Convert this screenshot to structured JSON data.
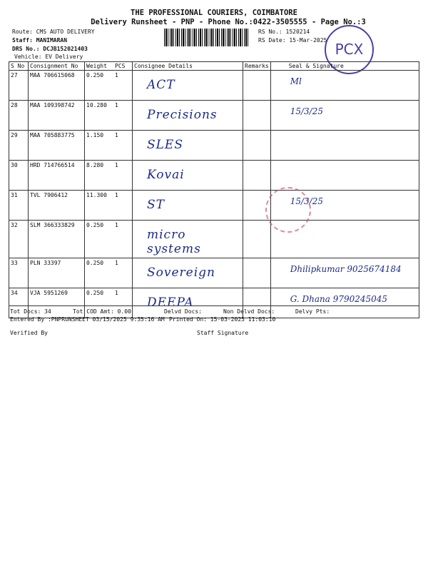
{
  "header": {
    "company": "THE PROFESSIONAL COURIERS, COIMBATORE",
    "subtitle": "Delivery Runsheet - PNP - Phone No.:0422-3505555 - Page No.:3",
    "route": "Route: CMS AUTO DELIVERY",
    "staff": "Staff: MANIMARAN",
    "drs": "DRS No.: DCJB152021403",
    "vehicle": "Vehicle: EV Delivery",
    "rs_no": "RS No.: 1520214",
    "rs_date": "RS Date: 15-Mar-2025",
    "stamp": "PCX"
  },
  "table": {
    "headers": [
      "S No",
      "Consignment No",
      "Weight",
      "PCS",
      "Consignee Details",
      "Remarks",
      "Seal & Signature"
    ],
    "rows": [
      {
        "sno": "27",
        "cno": "MAA 706615068",
        "weight": "0.250",
        "pcs": "1",
        "consignee": "ACT",
        "sig": "Ml"
      },
      {
        "sno": "28",
        "cno": "MAA 109398742",
        "weight": "10.280",
        "pcs": "1",
        "consignee": "Precisions",
        "sig": "15/3/25"
      },
      {
        "sno": "29",
        "cno": "MAA 705883775",
        "weight": "1.150",
        "pcs": "1",
        "consignee": "SLES",
        "sig": ""
      },
      {
        "sno": "30",
        "cno": "HRD 714766514",
        "weight": "8.280",
        "pcs": "1",
        "consignee": "Kovai",
        "sig": ""
      },
      {
        "sno": "31",
        "cno": "TVL 7906412",
        "weight": "11.300",
        "pcs": "1",
        "consignee": "ST",
        "sig": "15/3/25"
      },
      {
        "sno": "32",
        "cno": "SLM 366333829",
        "weight": "0.250",
        "pcs": "1",
        "consignee": "micro systems",
        "sig": ""
      },
      {
        "sno": "33",
        "cno": "PLN 33397",
        "weight": "0.250",
        "pcs": "1",
        "consignee": "Sovereign",
        "sig": "Dhilipkumar 9025674184"
      },
      {
        "sno": "34",
        "cno": "VJA 5951269",
        "weight": "0.250",
        "pcs": "1",
        "consignee": "DEEPA",
        "sig": "G. Dhana 9790245045"
      }
    ]
  },
  "footer": {
    "tot_docs": "Tot Docs:  34",
    "tot_cod": "Tot COD Amt:    0.00",
    "delvd": "Delvd Docs:",
    "non_delvd": "Non Delvd Docs:",
    "delvy_pts": "Delvy Pts:",
    "entered": "Entered By :PNPRUNSHEET 03/15/2025 9:35:16 AM",
    "printed": "Printed On: 15-03-2025 11:03:10",
    "verified": "Verified By",
    "staff_sig": "Staff Signature"
  }
}
